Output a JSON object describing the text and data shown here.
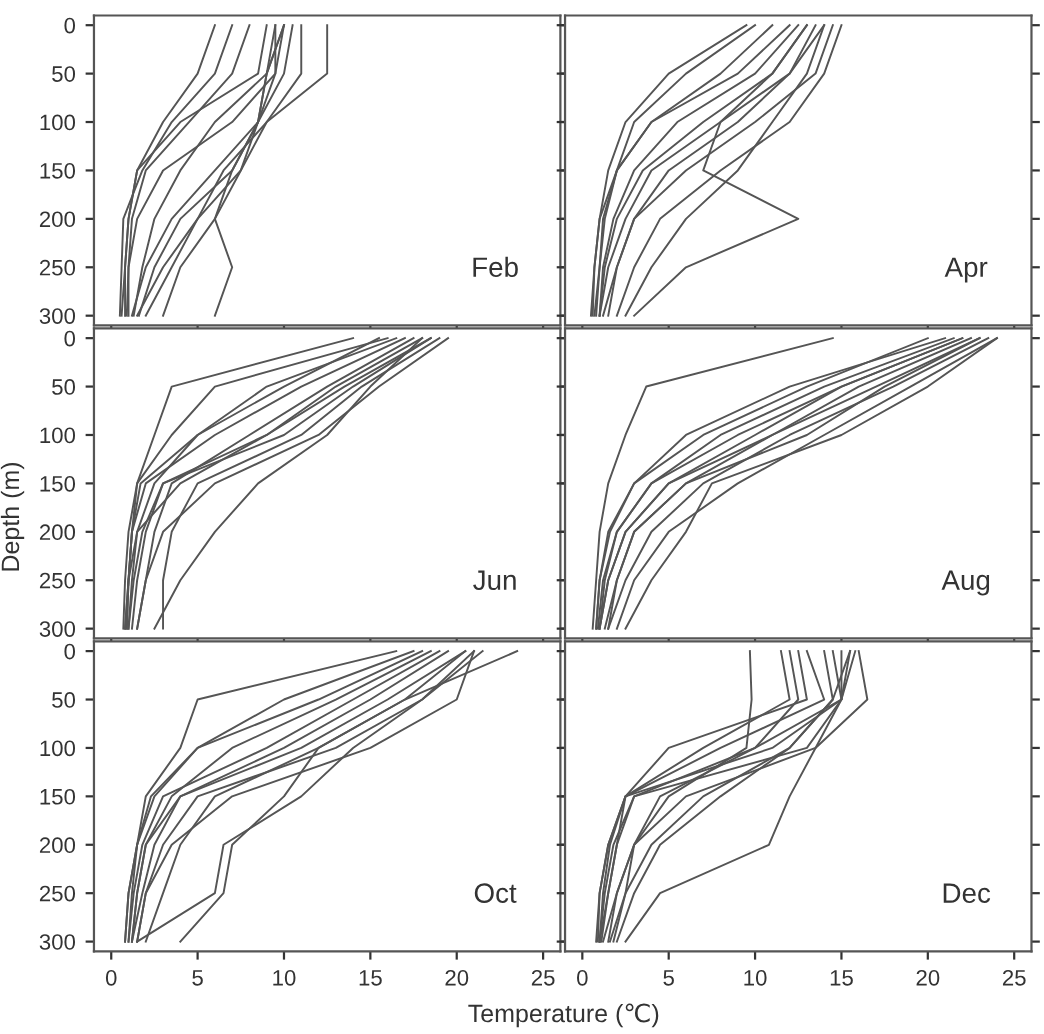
{
  "chart_data": [
    {
      "type": "line",
      "annotations": [
        "Feb"
      ],
      "xlim": [
        -1,
        26
      ],
      "ylim": [
        310,
        -10
      ],
      "xticks": [
        0,
        5,
        10,
        15,
        20,
        25
      ],
      "yticks": [
        0,
        50,
        100,
        150,
        200,
        250,
        300
      ],
      "tick_labels": "y",
      "marker": "none",
      "line_style": "solid",
      "series": [
        {
          "color": "#555555",
          "x": [
            6,
            5,
            3,
            1.5,
            1,
            0.8,
            0.8
          ],
          "values": [
            0,
            50,
            100,
            150,
            200,
            250,
            300
          ]
        },
        {
          "color": "#555555",
          "x": [
            9,
            8.5,
            4,
            1.5,
            1,
            0.8,
            0.6
          ],
          "values": [
            0,
            50,
            100,
            150,
            200,
            250,
            300
          ]
        },
        {
          "color": "#555555",
          "x": [
            10,
            9.5,
            7,
            3,
            1.5,
            1,
            1
          ],
          "values": [
            0,
            50,
            100,
            150,
            200,
            250,
            300
          ]
        },
        {
          "color": "#555555",
          "x": [
            10,
            9,
            6,
            4,
            2.5,
            1.8,
            1.3
          ],
          "values": [
            0,
            50,
            100,
            150,
            200,
            250,
            300
          ]
        },
        {
          "color": "#555555",
          "x": [
            9.5,
            9,
            8.5,
            7,
            4,
            2.5,
            1.6
          ],
          "values": [
            0,
            50,
            100,
            150,
            200,
            250,
            300
          ]
        },
        {
          "color": "#555555",
          "x": [
            10.5,
            10,
            8.5,
            6,
            3.5,
            2,
            1.2
          ],
          "values": [
            0,
            50,
            100,
            150,
            200,
            250,
            300
          ]
        },
        {
          "color": "#555555",
          "x": [
            11,
            11,
            9,
            7.5,
            6,
            4,
            3
          ],
          "values": [
            0,
            50,
            100,
            150,
            200,
            250,
            300
          ]
        },
        {
          "color": "#555555",
          "x": [
            12.5,
            12.5,
            9,
            6.5,
            5,
            3.5,
            2
          ],
          "values": [
            0,
            50,
            100,
            150,
            200,
            250,
            300
          ]
        },
        {
          "color": "#555555",
          "x": [
            8,
            7,
            4.5,
            2,
            1.2,
            1,
            0.9
          ],
          "values": [
            0,
            50,
            100,
            150,
            200,
            250,
            300
          ]
        },
        {
          "color": "#555555",
          "x": [
            10,
            9,
            8.5,
            7,
            6,
            7,
            6
          ],
          "values": [
            0,
            50,
            100,
            150,
            200,
            250,
            300
          ]
        },
        {
          "color": "#555555",
          "x": [
            9.5,
            9.5,
            8.5,
            7.5,
            5,
            3,
            1.5
          ],
          "values": [
            0,
            50,
            100,
            150,
            200,
            250,
            300
          ]
        },
        {
          "color": "#555555",
          "x": [
            7,
            6,
            3.5,
            1.8,
            0.7,
            0.6,
            0.5
          ],
          "values": [
            0,
            50,
            100,
            150,
            200,
            250,
            300
          ]
        }
      ]
    },
    {
      "type": "line",
      "annotations": [
        "Apr"
      ],
      "xlim": [
        -1,
        26
      ],
      "ylim": [
        310,
        -10
      ],
      "xticks": [
        0,
        5,
        10,
        15,
        20,
        25
      ],
      "yticks": [
        0,
        50,
        100,
        150,
        200,
        250,
        300
      ],
      "tick_labels": false,
      "marker": "none",
      "line_style": "solid",
      "series": [
        {
          "color": "#555555",
          "x": [
            9.5,
            5,
            2.5,
            1.5,
            1,
            0.7,
            0.5
          ],
          "values": [
            0,
            50,
            100,
            150,
            200,
            250,
            300
          ]
        },
        {
          "color": "#555555",
          "x": [
            12,
            9,
            4,
            2,
            1.2,
            1,
            0.7
          ],
          "values": [
            0,
            50,
            100,
            150,
            200,
            250,
            300
          ]
        },
        {
          "color": "#555555",
          "x": [
            13,
            11,
            7,
            3.5,
            2,
            1.3,
            1
          ],
          "values": [
            0,
            50,
            100,
            150,
            200,
            250,
            300
          ]
        },
        {
          "color": "#555555",
          "x": [
            14,
            12,
            8,
            4,
            2.5,
            1.5,
            1
          ],
          "values": [
            0,
            50,
            100,
            150,
            200,
            250,
            300
          ]
        },
        {
          "color": "#555555",
          "x": [
            14.5,
            13.5,
            10,
            6,
            3,
            2,
            1.2
          ],
          "values": [
            0,
            50,
            100,
            150,
            200,
            250,
            300
          ]
        },
        {
          "color": "#555555",
          "x": [
            15,
            14,
            12,
            8,
            4.5,
            3,
            2
          ],
          "values": [
            0,
            50,
            100,
            150,
            200,
            250,
            300
          ]
        },
        {
          "color": "#555555",
          "x": [
            13,
            11,
            8,
            7,
            12.5,
            6,
            3
          ],
          "values": [
            0,
            50,
            100,
            150,
            200,
            250,
            300
          ]
        },
        {
          "color": "#555555",
          "x": [
            11,
            8,
            4,
            2,
            1,
            0.7,
            0.6
          ],
          "values": [
            0,
            50,
            100,
            150,
            200,
            250,
            300
          ]
        },
        {
          "color": "#555555",
          "x": [
            13.5,
            12,
            9,
            5,
            3,
            2,
            1.5
          ],
          "values": [
            0,
            50,
            100,
            150,
            200,
            250,
            300
          ]
        },
        {
          "color": "#555555",
          "x": [
            10,
            6,
            3,
            2,
            1.3,
            1,
            0.8
          ],
          "values": [
            0,
            50,
            100,
            150,
            200,
            250,
            300
          ]
        },
        {
          "color": "#555555",
          "x": [
            14,
            13,
            11,
            9,
            6,
            4,
            2.5
          ],
          "values": [
            0,
            50,
            100,
            150,
            200,
            250,
            300
          ]
        },
        {
          "color": "#555555",
          "x": [
            12.5,
            10,
            5.5,
            3,
            1.8,
            1.2,
            1
          ],
          "values": [
            0,
            50,
            100,
            150,
            200,
            250,
            300
          ]
        }
      ]
    },
    {
      "type": "line",
      "annotations": [
        "Jun"
      ],
      "ylabel": "Depth (m)",
      "xlim": [
        -1,
        26
      ],
      "ylim": [
        310,
        -10
      ],
      "xticks": [
        0,
        5,
        10,
        15,
        20,
        25
      ],
      "yticks": [
        0,
        50,
        100,
        150,
        200,
        250,
        300
      ],
      "tick_labels": "y",
      "marker": "none",
      "line_style": "solid",
      "series": [
        {
          "color": "#555555",
          "x": [
            14,
            3.5,
            2.5,
            1.5,
            1,
            0.8,
            0.7
          ],
          "values": [
            0,
            50,
            100,
            150,
            200,
            250,
            300
          ]
        },
        {
          "color": "#555555",
          "x": [
            16,
            6,
            3.5,
            1.5,
            1.2,
            1,
            0.9
          ],
          "values": [
            0,
            50,
            100,
            150,
            200,
            250,
            300
          ]
        },
        {
          "color": "#555555",
          "x": [
            17,
            11,
            6,
            2,
            1.2,
            1,
            0.8
          ],
          "values": [
            0,
            50,
            100,
            150,
            200,
            250,
            300
          ]
        },
        {
          "color": "#555555",
          "x": [
            18,
            13,
            9,
            4,
            1.5,
            1.2,
            1
          ],
          "values": [
            0,
            50,
            100,
            150,
            200,
            250,
            300
          ]
        },
        {
          "color": "#555555",
          "x": [
            18.5,
            14,
            10,
            3,
            1.8,
            1.3,
            1
          ],
          "values": [
            0,
            50,
            100,
            150,
            200,
            250,
            300
          ]
        },
        {
          "color": "#555555",
          "x": [
            19.5,
            15.5,
            12,
            6,
            3,
            2,
            1.5
          ],
          "values": [
            0,
            50,
            100,
            150,
            200,
            250,
            300
          ]
        },
        {
          "color": "#555555",
          "x": [
            17.5,
            12.5,
            8,
            3.5,
            2.5,
            2,
            1.5
          ],
          "values": [
            0,
            50,
            100,
            150,
            200,
            250,
            300
          ]
        },
        {
          "color": "#555555",
          "x": [
            18,
            15,
            12.5,
            8.5,
            6,
            4,
            2.5
          ],
          "values": [
            0,
            50,
            100,
            150,
            200,
            250,
            300
          ]
        },
        {
          "color": "#555555",
          "x": [
            16.5,
            9,
            5,
            2.5,
            1.5,
            1,
            0.9
          ],
          "values": [
            0,
            50,
            100,
            150,
            200,
            250,
            300
          ]
        },
        {
          "color": "#555555",
          "x": [
            19,
            14.5,
            11,
            5,
            3.5,
            3,
            3
          ],
          "values": [
            0,
            50,
            100,
            150,
            200,
            250,
            300
          ]
        },
        {
          "color": "#555555",
          "x": [
            15.5,
            10,
            5,
            1.7,
            1.2,
            1,
            0.8
          ],
          "values": [
            0,
            50,
            100,
            150,
            200,
            250,
            300
          ]
        },
        {
          "color": "#555555",
          "x": [
            18.5,
            13.5,
            9,
            3,
            2,
            1.5,
            1.2
          ],
          "values": [
            0,
            50,
            100,
            150,
            200,
            250,
            300
          ]
        }
      ]
    },
    {
      "type": "line",
      "annotations": [
        "Aug"
      ],
      "xlim": [
        -1,
        26
      ],
      "ylim": [
        310,
        -10
      ],
      "xticks": [
        0,
        5,
        10,
        15,
        20,
        25
      ],
      "yticks": [
        0,
        50,
        100,
        150,
        200,
        250,
        300
      ],
      "tick_labels": false,
      "marker": "none",
      "line_style": "solid",
      "series": [
        {
          "color": "#555555",
          "x": [
            14.5,
            3.7,
            2.5,
            1.5,
            1,
            0.8,
            0.6
          ],
          "values": [
            0,
            50,
            100,
            150,
            200,
            250,
            300
          ]
        },
        {
          "color": "#555555",
          "x": [
            21,
            12,
            6,
            3,
            1.5,
            1,
            0.8
          ],
          "values": [
            0,
            50,
            100,
            150,
            200,
            250,
            300
          ]
        },
        {
          "color": "#555555",
          "x": [
            22,
            15,
            10,
            5,
            2.5,
            1.5,
            1
          ],
          "values": [
            0,
            50,
            100,
            150,
            200,
            250,
            300
          ]
        },
        {
          "color": "#555555",
          "x": [
            23,
            17,
            11,
            6,
            3,
            2,
            1.3
          ],
          "values": [
            0,
            50,
            100,
            150,
            200,
            250,
            300
          ]
        },
        {
          "color": "#555555",
          "x": [
            24,
            19,
            14,
            9,
            5,
            3,
            2
          ],
          "values": [
            0,
            50,
            100,
            150,
            200,
            250,
            300
          ]
        },
        {
          "color": "#555555",
          "x": [
            22.5,
            16,
            11,
            5,
            2.5,
            1.5,
            1
          ],
          "values": [
            0,
            50,
            100,
            150,
            200,
            250,
            300
          ]
        },
        {
          "color": "#555555",
          "x": [
            20,
            13,
            7,
            3,
            1.6,
            1,
            0.8
          ],
          "values": [
            0,
            50,
            100,
            150,
            200,
            250,
            300
          ]
        },
        {
          "color": "#555555",
          "x": [
            23.5,
            18,
            12,
            7,
            4,
            2.5,
            1.5
          ],
          "values": [
            0,
            50,
            100,
            150,
            200,
            250,
            300
          ]
        },
        {
          "color": "#555555",
          "x": [
            24,
            20,
            15,
            7.5,
            6,
            4,
            2.5
          ],
          "values": [
            0,
            50,
            100,
            150,
            200,
            250,
            300
          ]
        },
        {
          "color": "#555555",
          "x": [
            21.5,
            14,
            8,
            4,
            2,
            1.2,
            0.9
          ],
          "values": [
            0,
            50,
            100,
            150,
            200,
            250,
            300
          ]
        },
        {
          "color": "#555555",
          "x": [
            23,
            17.5,
            13,
            6,
            3,
            2,
            1.5
          ],
          "values": [
            0,
            50,
            100,
            150,
            200,
            250,
            300
          ]
        },
        {
          "color": "#555555",
          "x": [
            22,
            15,
            9,
            4,
            2,
            1.3,
            1
          ],
          "values": [
            0,
            50,
            100,
            150,
            200,
            250,
            300
          ]
        }
      ]
    },
    {
      "type": "line",
      "annotations": [
        "Oct"
      ],
      "xlabel": "Temperature (℃)",
      "xlim": [
        -1,
        26
      ],
      "ylim": [
        310,
        -10
      ],
      "xticks": [
        0,
        5,
        10,
        15,
        20,
        25
      ],
      "yticks": [
        0,
        50,
        100,
        150,
        200,
        250,
        300
      ],
      "marker": "none",
      "line_style": "solid",
      "series": [
        {
          "color": "#555555",
          "x": [
            16.5,
            5,
            4,
            2,
            1.5,
            1,
            0.8
          ],
          "values": [
            0,
            50,
            100,
            150,
            200,
            250,
            300
          ]
        },
        {
          "color": "#555555",
          "x": [
            18,
            12,
            5,
            2.3,
            1.5,
            1.2,
            1
          ],
          "values": [
            0,
            50,
            100,
            150,
            200,
            250,
            300
          ]
        },
        {
          "color": "#555555",
          "x": [
            19,
            14,
            9,
            3,
            1.8,
            1.3,
            1
          ],
          "values": [
            0,
            50,
            100,
            150,
            200,
            250,
            300
          ]
        },
        {
          "color": "#555555",
          "x": [
            20.5,
            16,
            11,
            4,
            2,
            1.5,
            1.2
          ],
          "values": [
            0,
            50,
            100,
            150,
            200,
            250,
            300
          ]
        },
        {
          "color": "#555555",
          "x": [
            21,
            20,
            15,
            7,
            3.5,
            2,
            1.5
          ],
          "values": [
            0,
            50,
            100,
            150,
            200,
            250,
            300
          ]
        },
        {
          "color": "#555555",
          "x": [
            21.5,
            18,
            13,
            5,
            3,
            2,
            1.5
          ],
          "values": [
            0,
            50,
            100,
            150,
            200,
            250,
            300
          ]
        },
        {
          "color": "#555555",
          "x": [
            23.5,
            17,
            12,
            6,
            4,
            3,
            2
          ],
          "values": [
            0,
            50,
            100,
            150,
            200,
            250,
            300
          ]
        },
        {
          "color": "#555555",
          "x": [
            18.5,
            13,
            7,
            3.5,
            2,
            1.5,
            1.2
          ],
          "values": [
            0,
            50,
            100,
            150,
            200,
            250,
            300
          ]
        },
        {
          "color": "#555555",
          "x": [
            20.5,
            17,
            12,
            10,
            7,
            6.5,
            4
          ],
          "values": [
            0,
            50,
            100,
            150,
            200,
            250,
            300
          ]
        },
        {
          "color": "#555555",
          "x": [
            17.5,
            10,
            5,
            2.5,
            1.5,
            1,
            0.8
          ],
          "values": [
            0,
            50,
            100,
            150,
            200,
            250,
            300
          ]
        },
        {
          "color": "#555555",
          "x": [
            21,
            18,
            14,
            11,
            6.5,
            6,
            1.5
          ],
          "values": [
            0,
            50,
            100,
            150,
            200,
            250,
            300
          ]
        },
        {
          "color": "#555555",
          "x": [
            19.5,
            15,
            10,
            4,
            2.5,
            1.8,
            1.2
          ],
          "values": [
            0,
            50,
            100,
            150,
            200,
            250,
            300
          ]
        }
      ]
    },
    {
      "type": "line",
      "annotations": [
        "Dec"
      ],
      "xlim": [
        -1,
        26
      ],
      "ylim": [
        310,
        -10
      ],
      "xticks": [
        0,
        5,
        10,
        15,
        20,
        25
      ],
      "yticks": [
        0,
        50,
        100,
        150,
        200,
        250,
        300
      ],
      "tick_labels": "x",
      "marker": "none",
      "line_style": "solid",
      "series": [
        {
          "color": "#555555",
          "x": [
            9.7,
            9.8,
            9.5,
            5,
            3,
            2,
            1.2
          ],
          "values": [
            0,
            50,
            100,
            150,
            200,
            250,
            300
          ]
        },
        {
          "color": "#555555",
          "x": [
            12,
            12.5,
            10,
            3,
            2,
            1.5,
            1
          ],
          "values": [
            0,
            50,
            100,
            150,
            200,
            250,
            300
          ]
        },
        {
          "color": "#555555",
          "x": [
            14.5,
            15,
            11,
            2.5,
            1.5,
            1,
            0.8
          ],
          "values": [
            0,
            50,
            100,
            150,
            200,
            250,
            300
          ]
        },
        {
          "color": "#555555",
          "x": [
            15.5,
            15,
            13,
            3,
            1.8,
            1.3,
            1
          ],
          "values": [
            0,
            50,
            100,
            150,
            200,
            250,
            300
          ]
        },
        {
          "color": "#555555",
          "x": [
            16,
            16.5,
            13.5,
            12,
            10.8,
            4.5,
            2.5
          ],
          "values": [
            0,
            50,
            100,
            150,
            200,
            250,
            300
          ]
        },
        {
          "color": "#555555",
          "x": [
            15.5,
            14.5,
            12,
            8,
            4.5,
            3,
            2
          ],
          "values": [
            0,
            50,
            100,
            150,
            200,
            250,
            300
          ]
        },
        {
          "color": "#555555",
          "x": [
            13,
            14,
            8,
            2.5,
            1.6,
            1.2,
            1
          ],
          "values": [
            0,
            50,
            100,
            150,
            200,
            250,
            300
          ]
        },
        {
          "color": "#555555",
          "x": [
            15,
            15,
            13.5,
            6,
            3,
            2,
            1.5
          ],
          "values": [
            0,
            50,
            100,
            150,
            200,
            250,
            300
          ]
        },
        {
          "color": "#555555",
          "x": [
            12.5,
            13,
            5,
            2.5,
            1.5,
            1,
            0.9
          ],
          "values": [
            0,
            50,
            100,
            150,
            200,
            250,
            300
          ]
        },
        {
          "color": "#555555",
          "x": [
            15.8,
            15,
            10,
            4.5,
            3,
            2.5,
            1.6
          ],
          "values": [
            0,
            50,
            100,
            150,
            200,
            250,
            300
          ]
        },
        {
          "color": "#555555",
          "x": [
            14,
            14.5,
            12,
            7,
            4,
            2.5,
            1.8
          ],
          "values": [
            0,
            50,
            100,
            150,
            200,
            250,
            300
          ]
        },
        {
          "color": "#555555",
          "x": [
            11.5,
            12,
            7,
            2.5,
            2,
            1.5,
            1.1
          ],
          "values": [
            0,
            50,
            100,
            150,
            200,
            250,
            300
          ]
        }
      ]
    }
  ]
}
